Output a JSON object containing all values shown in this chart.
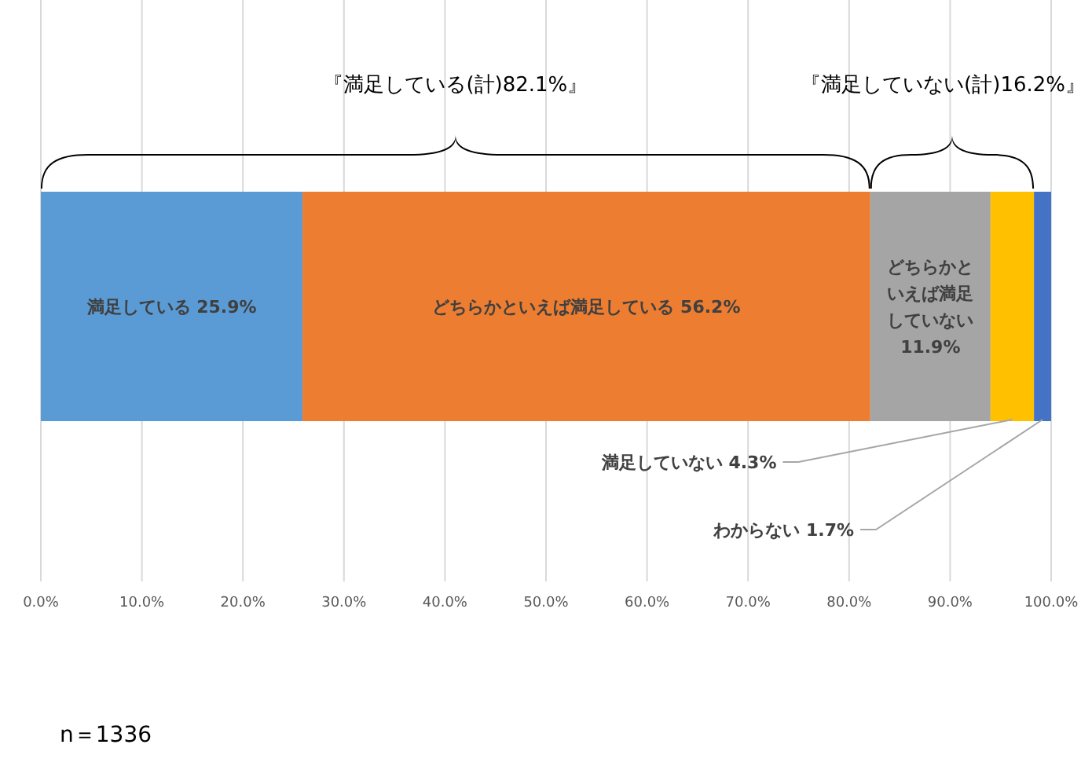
{
  "chart_data": {
    "type": "bar",
    "orientation": "horizontal",
    "stacked": true,
    "categories": [
      null
    ],
    "series": [
      {
        "name": "満足している",
        "color": "#5b9bd5",
        "values": [
          25.9
        ],
        "value_labels": [
          "25.9%"
        ]
      },
      {
        "name": "どちらかといえば満足している",
        "color": "#ed7d31",
        "values": [
          56.2
        ],
        "value_labels": [
          "56.2%"
        ]
      },
      {
        "name": "どちらかといえば満足していない",
        "color": "#a5a5a5",
        "values": [
          11.9
        ],
        "value_labels": [
          "11.9%"
        ]
      },
      {
        "name": "満足していない",
        "color": "#ffc000",
        "values": [
          4.3
        ],
        "value_labels": [
          "4.3%"
        ]
      },
      {
        "name": "わからない",
        "color": "#4472c4",
        "values": [
          1.7
        ],
        "value_labels": [
          "1.7%"
        ]
      }
    ],
    "xlim": [
      0,
      100
    ],
    "xticks": [
      {
        "value": 0,
        "label": "0.0%"
      },
      {
        "value": 10,
        "label": "10.0%"
      },
      {
        "value": 20,
        "label": "20.0%"
      },
      {
        "value": 30,
        "label": "30.0%"
      },
      {
        "value": 40,
        "label": "40.0%"
      },
      {
        "value": 50,
        "label": "50.0%"
      },
      {
        "value": 60,
        "label": "60.0%"
      },
      {
        "value": 70,
        "label": "70.0%"
      },
      {
        "value": 80,
        "label": "80.0%"
      },
      {
        "value": 90,
        "label": "90.0%"
      },
      {
        "value": 100,
        "label": "100.0%"
      }
    ],
    "grid": "x",
    "tick_labels": "x",
    "annotations": [
      "『満足している(計)82.1%』",
      "『満足していない(計)16.2%』",
      "n＝1336"
    ]
  }
}
